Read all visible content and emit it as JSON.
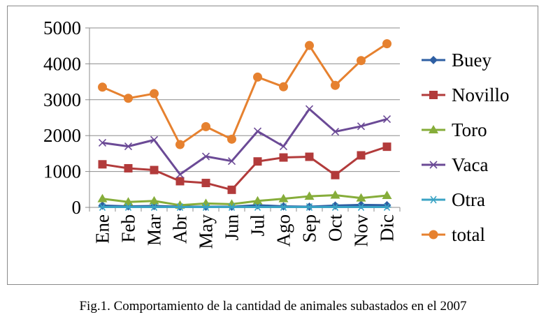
{
  "chart_data": {
    "type": "line",
    "title": "",
    "xlabel": "",
    "ylabel": "",
    "categories": [
      "Ene",
      "Feb",
      "Mar",
      "Abr",
      "May",
      "Jun",
      "Jul",
      "Ago",
      "Sep",
      "Oct",
      "Nov",
      "Dic"
    ],
    "ylim": [
      0,
      5000
    ],
    "yticks": [
      "0",
      "1000",
      "2000",
      "3000",
      "4000",
      "5000"
    ],
    "grid": "horizontal",
    "legend": "right",
    "series": [
      {
        "name": "Buey",
        "color": "#2e5fa3",
        "marker": "diamond",
        "values": [
          50,
          30,
          40,
          20,
          20,
          20,
          60,
          30,
          20,
          50,
          70,
          60
        ]
      },
      {
        "name": "Novillo",
        "color": "#b23b3b",
        "marker": "square",
        "values": [
          1200,
          1090,
          1040,
          730,
          680,
          490,
          1280,
          1390,
          1410,
          900,
          1450,
          1690
        ]
      },
      {
        "name": "Toro",
        "color": "#86ad3a",
        "marker": "triangle",
        "values": [
          240,
          150,
          180,
          60,
          110,
          90,
          180,
          240,
          310,
          340,
          260,
          330
        ]
      },
      {
        "name": "Vaca",
        "color": "#6b4a96",
        "marker": "x",
        "values": [
          1800,
          1700,
          1880,
          920,
          1420,
          1290,
          2120,
          1700,
          2740,
          2110,
          2260,
          2460
        ]
      },
      {
        "name": "Otra",
        "color": "#3aa3c4",
        "marker": "star",
        "values": [
          10,
          10,
          10,
          10,
          10,
          10,
          10,
          10,
          10,
          10,
          10,
          10
        ]
      },
      {
        "name": "total",
        "color": "#e6812f",
        "marker": "circle",
        "values": [
          3350,
          3040,
          3170,
          1750,
          2250,
          1900,
          3630,
          3360,
          4510,
          3400,
          4090,
          4560
        ]
      }
    ]
  },
  "caption": "Fig.1. Comportamiento de la cantidad de animales subastados en el 2007"
}
